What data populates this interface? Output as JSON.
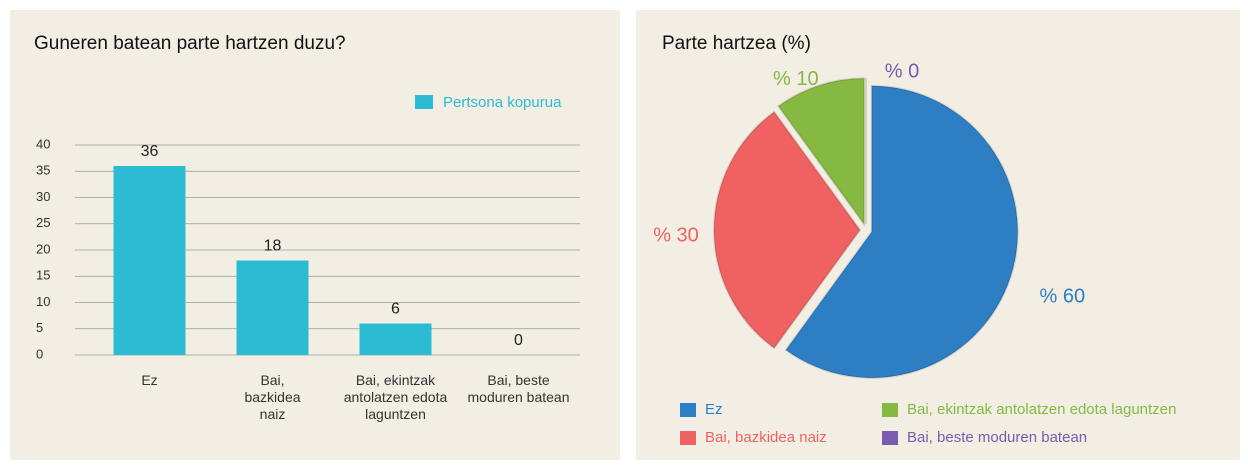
{
  "chart_data": [
    {
      "type": "bar",
      "title": "Guneren batean parte hartzen duzu?",
      "categories": [
        "Ez",
        "Bai, bazkidea naiz",
        "Bai, ekintzak antolatzen edota laguntzen",
        "Bai, beste moduren batean"
      ],
      "series": [
        {
          "name": "Pertsona kopurua",
          "color": "#2bbcd4",
          "values": [
            36,
            18,
            6,
            0
          ]
        }
      ],
      "ylim": [
        0,
        40
      ],
      "yticks": [
        0,
        5,
        10,
        15,
        20,
        25,
        30,
        35,
        40
      ],
      "grid": true,
      "legend": "top-right"
    },
    {
      "type": "pie",
      "title": "Parte hartzea (%)",
      "categories": [
        "Ez",
        "Bai, bazkidea naiz",
        "Bai, ekintzak antolatzen edota laguntzen",
        "Bai, beste moduren batean"
      ],
      "values": [
        60,
        30,
        10,
        0
      ],
      "value_labels": [
        "% 60",
        "% 30",
        "% 10",
        "% 0"
      ],
      "colors": [
        "#2e7ec4",
        "#f06262",
        "#86b942",
        "#7a5cae"
      ],
      "legend": "bottom"
    }
  ]
}
